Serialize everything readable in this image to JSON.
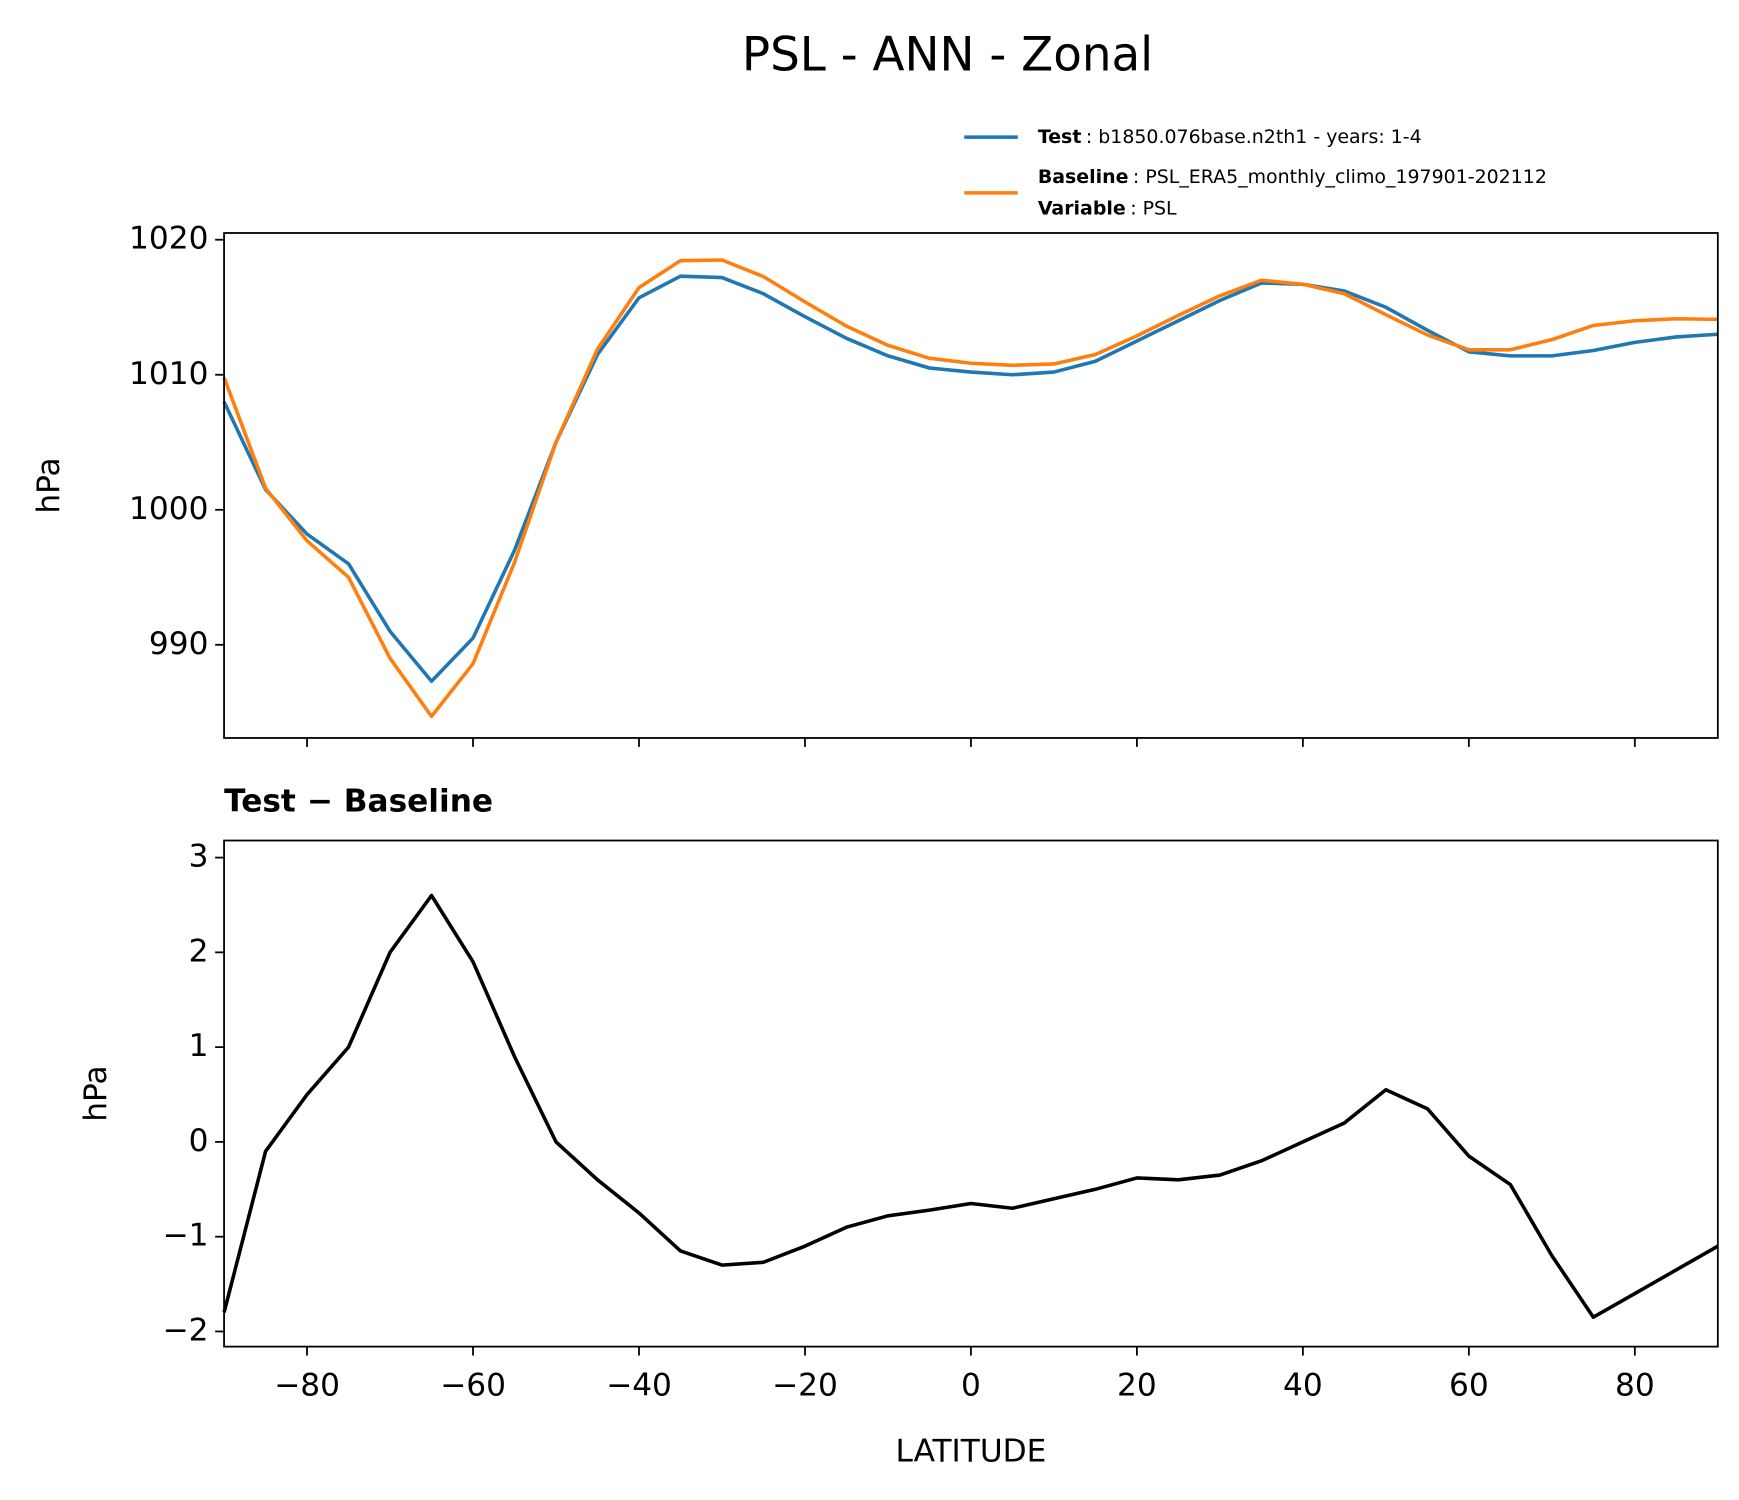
{
  "chart_data": [
    {
      "type": "line",
      "title": "PSL - ANN - Zonal",
      "ylabel": "hPa",
      "x": [
        -90,
        -85,
        -80,
        -75,
        -70,
        -65,
        -60,
        -55,
        -50,
        -45,
        -40,
        -35,
        -30,
        -25,
        -20,
        -15,
        -10,
        -5,
        0,
        5,
        10,
        15,
        20,
        25,
        30,
        35,
        40,
        45,
        50,
        55,
        60,
        65,
        70,
        75,
        80,
        85,
        90
      ],
      "series": [
        {
          "name": "Test",
          "description": ": b1850.076base.n2th1 - years: 1-4",
          "color": "#1f77b4",
          "values": [
            1008,
            1001.5,
            998.2,
            996,
            991,
            987.3,
            990.5,
            997,
            1005,
            1011.5,
            1015.7,
            1017.3,
            1017.2,
            1016,
            1014.3,
            1012.7,
            1011.4,
            1010.5,
            1010.2,
            1010,
            1010.2,
            1011,
            1012.5,
            1014,
            1015.5,
            1016.8,
            1016.7,
            1016.2,
            1015,
            1013.3,
            1011.7,
            1011.4,
            1011.4,
            1011.8,
            1012.4,
            1012.8,
            1013
          ]
        },
        {
          "name": "Baseline",
          "description": ": PSL_ERA5_monthly_climo_197901-202112",
          "color": "#ff7f0e",
          "values": [
            1009.8,
            1001.6,
            997.7,
            995,
            989,
            984.7,
            988.6,
            996.1,
            1005,
            1011.9,
            1016.45,
            1018.45,
            1018.5,
            1017.27,
            1015.4,
            1013.6,
            1012.18,
            1011.22,
            1010.85,
            1010.7,
            1010.8,
            1011.5,
            1012.88,
            1014.4,
            1015.85,
            1017,
            1016.7,
            1016,
            1014.45,
            1012.95,
            1011.85,
            1011.85,
            1012.6,
            1013.65,
            1014,
            1014.15,
            1014.1
          ]
        }
      ],
      "legend_note": {
        "name": "Variable",
        "description": ": PSL"
      },
      "xlim": [
        -90,
        90
      ],
      "xticks": [
        -80,
        -60,
        -40,
        -20,
        0,
        20,
        40,
        60,
        80
      ],
      "xtick_labels": false,
      "ylim": [
        983.1,
        1020.5
      ],
      "yticks": [
        990,
        1000,
        1010,
        1020
      ]
    },
    {
      "type": "line",
      "title": "Test − Baseline",
      "ylabel": "hPa",
      "xlabel": "LATITUDE",
      "x": [
        -90,
        -85,
        -80,
        -75,
        -70,
        -65,
        -60,
        -55,
        -50,
        -45,
        -40,
        -35,
        -30,
        -25,
        -20,
        -15,
        -10,
        -5,
        0,
        5,
        10,
        15,
        20,
        25,
        30,
        35,
        40,
        45,
        50,
        55,
        60,
        65,
        70,
        75,
        80,
        85,
        90
      ],
      "series": [
        {
          "color": "#000000",
          "values": [
            -1.8,
            -0.1,
            0.5,
            1,
            2,
            2.6,
            1.9,
            0.9,
            0,
            -0.4,
            -0.75,
            -1.15,
            -1.3,
            -1.27,
            -1.1,
            -0.9,
            -0.78,
            -0.72,
            -0.65,
            -0.7,
            -0.6,
            -0.5,
            -0.38,
            -0.4,
            -0.35,
            -0.2,
            0,
            0.2,
            0.55,
            0.35,
            -0.15,
            -0.45,
            -1.2,
            -1.85,
            -1.6,
            -1.35,
            -1.1
          ]
        }
      ],
      "xlim": [
        -90,
        90
      ],
      "xticks": [
        {
          "value": -80,
          "label": "−80"
        },
        {
          "value": -60,
          "label": "−60"
        },
        {
          "value": -40,
          "label": "−40"
        },
        {
          "value": -20,
          "label": "−20"
        },
        0,
        20,
        40,
        60,
        80
      ],
      "ylim": [
        -2.16,
        3.18
      ],
      "yticks": [
        {
          "value": -2,
          "label": "−2"
        },
        {
          "value": -1,
          "label": "−1"
        },
        0,
        1,
        2,
        3
      ]
    }
  ]
}
